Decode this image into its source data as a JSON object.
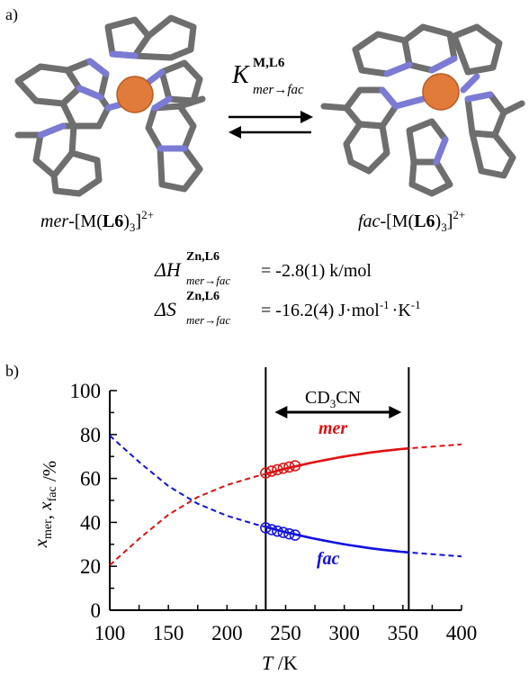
{
  "panel_a": {
    "label": "a)",
    "equilibrium_K": "K",
    "equilibrium_K_sup": "M,L6",
    "equilibrium_K_sub": "mer→fac",
    "mer_label": {
      "prefix": "mer",
      "main": "-[M(",
      "ligand": "L6",
      "close": ")",
      "sub": "3",
      "close2": "]",
      "sup": "2+"
    },
    "fac_label": {
      "prefix": "fac",
      "main": "-[M(",
      "ligand": "L6",
      "close": ")",
      "sub": "3",
      "close2": "]",
      "sup": "2+"
    },
    "dH": {
      "symbol": "ΔH",
      "sup": "Zn,L6",
      "sub": "mer→fac",
      "value": "= -2.8(1) k/mol"
    },
    "dS": {
      "symbol": "ΔS",
      "sup": "Zn,L6",
      "sub": "mer→fac",
      "value": "= -16.2(4) J·mol",
      "unit_tail": "·K",
      "exp": "-1"
    },
    "metal_color": "#e07b39",
    "carbon_color": "#6e6e6e",
    "nitrogen_color": "#7b7bd6"
  },
  "chart_data": {
    "type": "line",
    "panel_label": "b)",
    "xlabel": "T /K",
    "ylabel": "x_mer, x_fac /%",
    "xlim": [
      100,
      400
    ],
    "ylim": [
      0,
      100
    ],
    "x_ticks": [
      100,
      150,
      200,
      250,
      300,
      350,
      400
    ],
    "y_ticks": [
      0,
      20,
      40,
      60,
      80,
      100
    ],
    "solvent_label": "CD3CN",
    "solvent_range": [
      233,
      355
    ],
    "vertical_lines": [
      233,
      355
    ],
    "series": [
      {
        "name": "mer",
        "color": "#e01010",
        "dashed_x": [
          100,
          125,
          150,
          175,
          200,
          225,
          250,
          275,
          300,
          325,
          350,
          375,
          400
        ],
        "dashed_y": [
          20.5,
          32.5,
          43.5,
          51.5,
          57.0,
          61.0,
          64.5,
          67.5,
          70.0,
          72.0,
          73.5,
          74.5,
          75.5
        ],
        "solid_range": [
          233,
          355
        ],
        "points_x": [
          233,
          238,
          243,
          248,
          253,
          258
        ],
        "points_y": [
          62.5,
          63.3,
          64.0,
          64.6,
          65.2,
          65.8
        ]
      },
      {
        "name": "fac",
        "color": "#1010e0",
        "dashed_x": [
          100,
          125,
          150,
          175,
          200,
          225,
          250,
          275,
          300,
          325,
          350,
          375,
          400
        ],
        "dashed_y": [
          79.5,
          67.5,
          56.5,
          48.5,
          43.0,
          39.0,
          35.5,
          32.5,
          30.0,
          28.0,
          26.5,
          25.5,
          24.5
        ],
        "solid_range": [
          233,
          355
        ],
        "points_x": [
          233,
          238,
          243,
          248,
          253,
          258
        ],
        "points_y": [
          37.5,
          36.7,
          36.0,
          35.4,
          34.8,
          34.2
        ]
      }
    ],
    "grid": false
  }
}
